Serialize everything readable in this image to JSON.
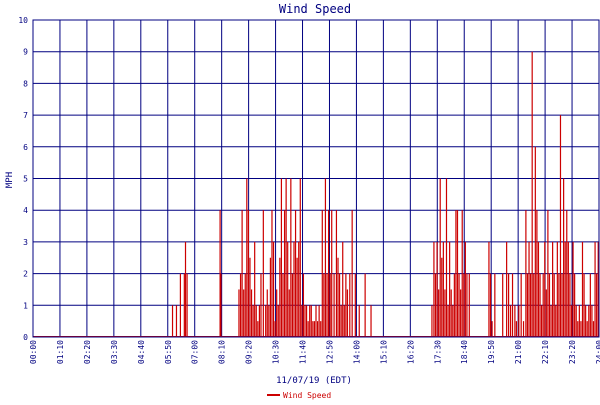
{
  "chart_data": {
    "type": "bar",
    "title": "Wind Speed",
    "xlabel": "11/07/19 (EDT)",
    "ylabel": "MPH",
    "ylim": [
      0,
      10
    ],
    "yticks": [
      "0",
      "1",
      "2",
      "3",
      "4",
      "5",
      "6",
      "7",
      "8",
      "9",
      "10"
    ],
    "xlim_minutes": [
      0,
      1440
    ],
    "xticks": [
      "00:00",
      "01:10",
      "02:20",
      "03:30",
      "04:40",
      "05:50",
      "07:00",
      "08:10",
      "09:20",
      "10:30",
      "11:40",
      "12:50",
      "14:00",
      "15:10",
      "16:20",
      "17:30",
      "18:40",
      "19:50",
      "21:00",
      "22:10",
      "23:20",
      "24:00"
    ],
    "grid": true,
    "legend_position": "bottom",
    "colors": {
      "series": "#cc0000",
      "grid": "#000080",
      "background": "#ffffff",
      "text": "#000080"
    },
    "series": [
      {
        "name": "Wind Speed",
        "x_unit": "minutes since 00:00",
        "x": [
          355,
          365,
          375,
          385,
          388,
          392,
          476,
          478,
          524,
          528,
          532,
          536,
          540,
          544,
          548,
          552,
          556,
          560,
          564,
          568,
          572,
          576,
          580,
          586,
          592,
          596,
          600,
          604,
          608,
          612,
          616,
          620,
          624,
          628,
          632,
          636,
          640,
          644,
          648,
          652,
          656,
          660,
          664,
          668,
          672,
          676,
          680,
          684,
          688,
          692,
          696,
          700,
          704,
          708,
          712,
          716,
          720,
          724,
          728,
          732,
          736,
          740,
          744,
          748,
          752,
          756,
          760,
          766,
          772,
          776,
          780,
          784,
          788,
          792,
          796,
          800,
          806,
          812,
          820,
          830,
          845,
          860,
          1015,
          1020,
          1024,
          1028,
          1032,
          1036,
          1040,
          1044,
          1048,
          1052,
          1056,
          1060,
          1064,
          1068,
          1072,
          1076,
          1080,
          1084,
          1088,
          1092,
          1096,
          1100,
          1104,
          1110,
          1160,
          1164,
          1168,
          1175,
          1195,
          1205,
          1210,
          1215,
          1220,
          1226,
          1230,
          1236,
          1242,
          1248,
          1254,
          1258,
          1262,
          1266,
          1270,
          1274,
          1278,
          1282,
          1286,
          1290,
          1294,
          1298,
          1302,
          1306,
          1310,
          1314,
          1318,
          1322,
          1326,
          1330,
          1334,
          1338,
          1342,
          1346,
          1350,
          1354,
          1358,
          1362,
          1366,
          1370,
          1374,
          1378,
          1382,
          1386,
          1390,
          1394,
          1398,
          1402,
          1406,
          1410,
          1414,
          1418,
          1422,
          1426,
          1430,
          1434,
          1438
        ],
        "values": [
          1,
          1,
          2,
          2,
          3,
          2,
          4,
          2,
          1.5,
          2,
          4,
          1.5,
          2,
          5,
          4,
          2.5,
          1.5,
          1,
          3,
          1,
          0.5,
          1,
          2,
          4,
          1,
          1.5,
          1,
          2.5,
          4,
          3,
          0.5,
          1.5,
          1,
          2.5,
          5,
          2,
          4,
          5,
          3,
          1.5,
          5,
          2,
          3,
          4,
          2.5,
          3,
          5,
          1,
          2,
          1,
          1,
          0.5,
          1,
          1,
          0.5,
          0.5,
          1,
          0.5,
          1,
          0.5,
          4,
          2,
          5,
          2,
          4,
          2,
          4,
          2,
          4,
          2.5,
          2,
          1,
          3,
          1,
          2,
          1.5,
          2,
          4,
          2,
          1,
          2,
          1,
          1,
          3,
          2,
          3,
          1.5,
          5,
          2.5,
          3,
          1.5,
          5,
          1,
          3,
          1.5,
          1,
          2,
          4,
          4,
          2,
          1.5,
          4,
          2,
          3,
          2,
          2,
          3,
          2,
          0.5,
          2,
          2,
          3,
          2,
          1,
          2,
          1,
          0.5,
          1,
          2,
          0.5,
          4,
          2,
          3,
          2,
          9,
          2,
          6,
          4,
          3,
          2,
          1,
          2,
          3,
          1.5,
          4,
          2,
          1,
          3,
          2,
          1,
          3,
          2,
          7,
          2,
          5,
          3,
          4,
          3,
          2,
          1,
          3,
          2,
          1,
          0.5,
          1,
          0.5,
          3,
          2,
          1,
          0.5,
          1,
          2,
          1,
          0.5,
          3,
          2,
          3
        ]
      }
    ]
  }
}
